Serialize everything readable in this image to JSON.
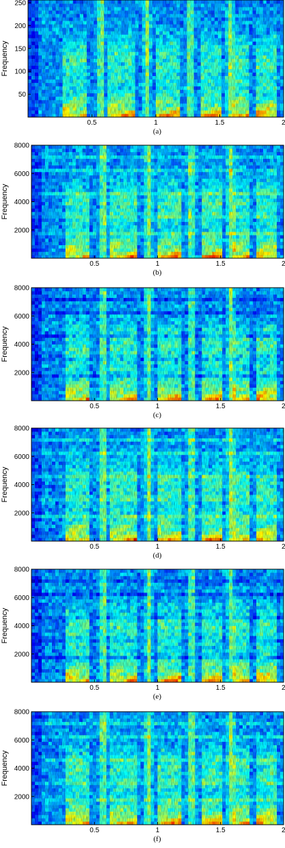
{
  "figure": {
    "panels": [
      {
        "id": "a",
        "caption": "(a)",
        "ylabel": "Frequency",
        "yticks": [
          "50",
          "100",
          "150",
          "200",
          "250"
        ],
        "xticks": [
          "0.5",
          "1",
          "1.5",
          "2"
        ]
      },
      {
        "id": "b",
        "caption": "(b)",
        "ylabel": "Frequency",
        "yticks": [
          "2000",
          "4000",
          "6000",
          "8000"
        ],
        "xticks": [
          "0.5",
          "1",
          "1.5",
          "2"
        ]
      },
      {
        "id": "c",
        "caption": "(c)",
        "ylabel": "Frequency",
        "yticks": [
          "2000",
          "4000",
          "6000",
          "8000"
        ],
        "xticks": [
          "0.5",
          "1",
          "1.5",
          "2"
        ]
      },
      {
        "id": "d",
        "caption": "(d)",
        "ylabel": "Frequency",
        "yticks": [
          "2000",
          "4000",
          "6000",
          "8000"
        ],
        "xticks": [
          "0.5",
          "1",
          "1.5",
          "2"
        ]
      },
      {
        "id": "e",
        "caption": "(e)",
        "ylabel": "Frequency",
        "yticks": [
          "2000",
          "4000",
          "6000",
          "8000"
        ],
        "xticks": [
          "0.5",
          "1",
          "1.5",
          "2"
        ]
      },
      {
        "id": "f",
        "caption": "(f)",
        "ylabel": "Frequency",
        "yticks": [
          "2000",
          "4000",
          "6000",
          "8000"
        ],
        "xticks": [
          "0.5",
          "1",
          "1.5",
          "2"
        ]
      }
    ]
  },
  "chart_data": [
    {
      "type": "heatmap",
      "colormap": "jet",
      "ylabel": "Frequency",
      "xlabel": "",
      "xlim": [
        0,
        2
      ],
      "ylim": [
        0,
        256
      ],
      "xticks": [
        0.5,
        1,
        1.5,
        2
      ],
      "yticks": [
        50,
        100,
        150,
        200,
        250
      ]
    },
    {
      "type": "heatmap",
      "colormap": "jet",
      "ylabel": "Frequency",
      "xlabel": "",
      "xlim": [
        0,
        2
      ],
      "ylim": [
        0,
        8000
      ],
      "xticks": [
        0.5,
        1,
        1.5,
        2
      ],
      "yticks": [
        2000,
        4000,
        6000,
        8000
      ]
    },
    {
      "type": "heatmap",
      "colormap": "jet",
      "ylabel": "Frequency",
      "xlabel": "",
      "xlim": [
        0,
        2
      ],
      "ylim": [
        0,
        8000
      ],
      "xticks": [
        0.5,
        1,
        1.5,
        2
      ],
      "yticks": [
        2000,
        4000,
        6000,
        8000
      ]
    },
    {
      "type": "heatmap",
      "colormap": "jet",
      "ylabel": "Frequency",
      "xlabel": "",
      "xlim": [
        0,
        2
      ],
      "ylim": [
        0,
        8000
      ],
      "xticks": [
        0.5,
        1,
        1.5,
        2
      ],
      "yticks": [
        2000,
        4000,
        6000,
        8000
      ]
    },
    {
      "type": "heatmap",
      "colormap": "jet",
      "ylabel": "Frequency",
      "xlabel": "",
      "xlim": [
        0,
        2
      ],
      "ylim": [
        0,
        8000
      ],
      "xticks": [
        0.5,
        1,
        1.5,
        2
      ],
      "yticks": [
        2000,
        4000,
        6000,
        8000
      ]
    },
    {
      "type": "heatmap",
      "colormap": "jet",
      "ylabel": "Frequency",
      "xlabel": "",
      "xlim": [
        0,
        2
      ],
      "ylim": [
        0,
        8000
      ],
      "xticks": [
        0.5,
        1,
        1.5,
        2
      ],
      "yticks": [
        2000,
        4000,
        6000,
        8000
      ]
    }
  ]
}
